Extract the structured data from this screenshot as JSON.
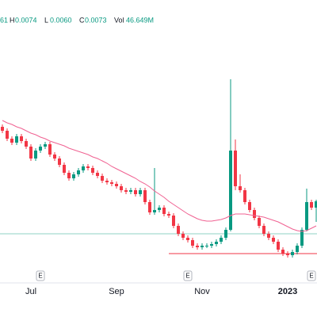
{
  "header": {
    "prefix": "61",
    "items": [
      {
        "key": "H",
        "text": "0.0074"
      },
      {
        "key": "L",
        "text": "0.0060"
      },
      {
        "key": "C",
        "text": "0.0073"
      }
    ],
    "vol_key": "Vol",
    "vol": "46.649M"
  },
  "chart_data": {
    "type": "candlestick",
    "ylim": [
      0.002,
      0.02
    ],
    "up_color": "#089981",
    "down_color": "#f23645",
    "ma_color": "#f06292",
    "categories": [
      null,
      null,
      null,
      null,
      null,
      null,
      "Jul",
      null,
      null,
      null,
      null,
      null,
      null,
      null,
      null,
      null,
      null,
      null,
      null,
      null,
      null,
      null,
      null,
      null,
      "Sep",
      null,
      null,
      null,
      null,
      null,
      null,
      null,
      null,
      null,
      null,
      null,
      null,
      null,
      null,
      null,
      null,
      null,
      "Nov",
      null,
      null,
      null,
      null,
      null,
      null,
      null,
      null,
      null,
      null,
      null,
      null,
      null,
      null,
      null,
      null,
      null,
      "2023",
      null,
      null,
      null,
      null,
      null,
      null
    ],
    "candles": [
      [
        0.012,
        0.01215,
        0.0116,
        0.01175
      ],
      [
        0.01175,
        0.0119,
        0.0111,
        0.01125
      ],
      [
        0.01125,
        0.0114,
        0.01085,
        0.011
      ],
      [
        0.011,
        0.01155,
        0.01085,
        0.0114
      ],
      [
        0.0114,
        0.01155,
        0.01095,
        0.0111
      ],
      [
        0.0111,
        0.01125,
        0.0106,
        0.01075
      ],
      [
        0.01075,
        0.0109,
        0.00985,
        0.01
      ],
      [
        0.01,
        0.01065,
        0.00985,
        0.0105
      ],
      [
        0.0105,
        0.0109,
        0.01035,
        0.01075
      ],
      [
        0.01075,
        0.01105,
        0.0106,
        0.0109
      ],
      [
        0.0109,
        0.01105,
        0.0101,
        0.01025
      ],
      [
        0.01025,
        0.0104,
        0.00985,
        0.01
      ],
      [
        0.01,
        0.01015,
        0.00945,
        0.0096
      ],
      [
        0.0096,
        0.00975,
        0.00895,
        0.0091
      ],
      [
        0.0091,
        0.00925,
        0.0086,
        0.00875
      ],
      [
        0.00875,
        0.00915,
        0.0086,
        0.009
      ],
      [
        0.009,
        0.0094,
        0.00885,
        0.00925
      ],
      [
        0.00925,
        0.00965,
        0.0091,
        0.0095
      ],
      [
        0.0095,
        0.00965,
        0.00925,
        0.0094
      ],
      [
        0.0094,
        0.00955,
        0.00895,
        0.0091
      ],
      [
        0.0091,
        0.00925,
        0.00875,
        0.0089
      ],
      [
        0.0089,
        0.00905,
        0.00845,
        0.0086
      ],
      [
        0.0086,
        0.00875,
        0.00835,
        0.0085
      ],
      [
        0.0085,
        0.00865,
        0.00825,
        0.0084
      ],
      [
        0.0084,
        0.00855,
        0.0081,
        0.00825
      ],
      [
        0.00825,
        0.0084,
        0.00785,
        0.008
      ],
      [
        0.008,
        0.00815,
        0.00775,
        0.0079
      ],
      [
        0.0079,
        0.00815,
        0.00775,
        0.008
      ],
      [
        0.008,
        0.00815,
        0.0076,
        0.00775
      ],
      [
        0.00775,
        0.00815,
        0.0076,
        0.008
      ],
      [
        0.008,
        0.00815,
        0.0071,
        0.00725
      ],
      [
        0.00725,
        0.0074,
        0.00645,
        0.0066
      ],
      [
        0.0066,
        0.0094,
        0.00645,
        0.00675
      ],
      [
        0.00675,
        0.00705,
        0.0066,
        0.0069
      ],
      [
        0.0069,
        0.00705,
        0.00635,
        0.0065
      ],
      [
        0.0065,
        0.00665,
        0.00625,
        0.0064
      ],
      [
        0.0064,
        0.00655,
        0.0056,
        0.00575
      ],
      [
        0.00575,
        0.0059,
        0.0051,
        0.00525
      ],
      [
        0.00525,
        0.0054,
        0.00485,
        0.005
      ],
      [
        0.005,
        0.00515,
        0.0047,
        0.00485
      ],
      [
        0.00485,
        0.005,
        0.00435,
        0.0045
      ],
      [
        0.0045,
        0.00465,
        0.00425,
        0.0044
      ],
      [
        0.0044,
        0.00465,
        0.00425,
        0.0045
      ],
      [
        0.0045,
        0.00465,
        0.00435,
        0.0045
      ],
      [
        0.0045,
        0.00475,
        0.00435,
        0.0046
      ],
      [
        0.0046,
        0.0049,
        0.00445,
        0.00475
      ],
      [
        0.00475,
        0.00515,
        0.0046,
        0.005
      ],
      [
        0.005,
        0.00565,
        0.00485,
        0.0055
      ],
      [
        0.0055,
        0.015,
        0.0054,
        0.0105
      ],
      [
        0.0105,
        0.0112,
        0.008,
        0.00825
      ],
      [
        0.00825,
        0.009,
        0.00785,
        0.008
      ],
      [
        0.008,
        0.00815,
        0.0071,
        0.00725
      ],
      [
        0.00725,
        0.0074,
        0.0066,
        0.00675
      ],
      [
        0.00675,
        0.0069,
        0.0061,
        0.00625
      ],
      [
        0.00625,
        0.0064,
        0.0056,
        0.00575
      ],
      [
        0.00575,
        0.0059,
        0.0051,
        0.00525
      ],
      [
        0.00525,
        0.0054,
        0.00485,
        0.005
      ],
      [
        0.005,
        0.00515,
        0.0046,
        0.00475
      ],
      [
        0.00475,
        0.0049,
        0.0041,
        0.00425
      ],
      [
        0.00425,
        0.0044,
        0.00385,
        0.004
      ],
      [
        0.004,
        0.00415,
        0.00375,
        0.0039
      ],
      [
        0.0039,
        0.00425,
        0.00375,
        0.0041
      ],
      [
        0.0041,
        0.00465,
        0.00395,
        0.0045
      ],
      [
        0.0045,
        0.00565,
        0.00435,
        0.0055
      ],
      [
        0.0055,
        0.0081,
        0.0054,
        0.00725
      ],
      [
        0.00725,
        0.0074,
        0.00675,
        0.0069
      ],
      [
        0.0069,
        0.0074,
        0.006,
        0.0073
      ]
    ],
    "ma": [
      0.0124,
      0.01225,
      0.01215,
      0.012,
      0.0119,
      0.01175,
      0.0116,
      0.0115,
      0.01135,
      0.01125,
      0.0111,
      0.011,
      0.0109,
      0.0108,
      0.01065,
      0.01055,
      0.01045,
      0.01035,
      0.01025,
      0.0101,
      0.01,
      0.00985,
      0.0097,
      0.0095,
      0.00935,
      0.0092,
      0.00905,
      0.0089,
      0.00875,
      0.00855,
      0.0084,
      0.0082,
      0.00795,
      0.00775,
      0.00755,
      0.0073,
      0.0071,
      0.0069,
      0.0067,
      0.0065,
      0.00635,
      0.0062,
      0.0061,
      0.00605,
      0.00605,
      0.0061,
      0.00615,
      0.00625,
      0.0064,
      0.0065,
      0.0065,
      0.0065,
      0.00645,
      0.0064,
      0.00635,
      0.0063,
      0.0062,
      0.0061,
      0.006,
      0.00585,
      0.0057,
      0.00555,
      0.00545,
      0.0054,
      0.00545,
      0.0056,
      0.00575
    ],
    "lines": [
      {
        "value": 0.00525,
        "color": "#8fd3c6"
      },
      {
        "value": 0.004,
        "color": "#f23645",
        "start": 35
      }
    ],
    "events": [
      {
        "label": "E",
        "index": 8
      },
      {
        "label": "E",
        "index": 39
      },
      {
        "label": "E",
        "index": 65
      }
    ]
  }
}
